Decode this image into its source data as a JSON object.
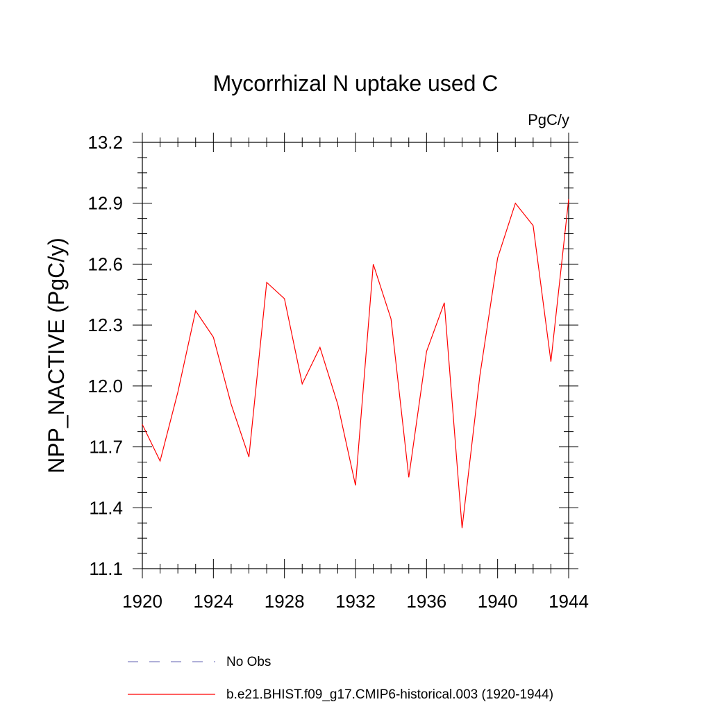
{
  "chart_data": {
    "type": "line",
    "title": "Mycorrhizal N uptake used C",
    "units_label": "PgC/y",
    "ylabel": "NPP_NACTIVE  (PgC/y)",
    "xlabel": "",
    "xlim": [
      1920,
      1944
    ],
    "ylim": [
      11.1,
      13.2
    ],
    "x_ticks": [
      1920,
      1924,
      1928,
      1932,
      1936,
      1940,
      1944
    ],
    "x_tick_labels": [
      "1920",
      "1924",
      "1928",
      "1932",
      "1936",
      "1940",
      "1944"
    ],
    "y_ticks": [
      11.1,
      11.4,
      11.7,
      12.0,
      12.3,
      12.6,
      12.9,
      13.2
    ],
    "y_tick_labels": [
      "11.1",
      "11.4",
      "11.7",
      "12.0",
      "12.3",
      "12.6",
      "12.9",
      "13.2"
    ],
    "grid": false,
    "legend_position": "bottom",
    "series": [
      {
        "name": "b.e21.BHIST.f09_g17.CMIP6-historical.003 (1920-1944)",
        "color": "#ff0000",
        "style": "solid",
        "x": [
          1920,
          1921,
          1922,
          1923,
          1924,
          1925,
          1926,
          1927,
          1928,
          1929,
          1930,
          1931,
          1932,
          1933,
          1934,
          1935,
          1936,
          1937,
          1938,
          1939,
          1940,
          1941,
          1942,
          1943,
          1944
        ],
        "y": [
          11.81,
          11.63,
          11.97,
          12.37,
          12.24,
          11.91,
          11.65,
          12.51,
          12.43,
          12.01,
          12.19,
          11.91,
          11.51,
          12.6,
          12.33,
          11.55,
          12.17,
          12.41,
          11.3,
          12.05,
          12.63,
          12.9,
          12.79,
          12.12,
          12.92
        ]
      }
    ],
    "legend": [
      {
        "label": "No Obs",
        "color": "#8080c0",
        "style": "dashed"
      },
      {
        "label": "b.e21.BHIST.f09_g17.CMIP6-historical.003 (1920-1944)",
        "color": "#ff0000",
        "style": "solid"
      }
    ]
  }
}
